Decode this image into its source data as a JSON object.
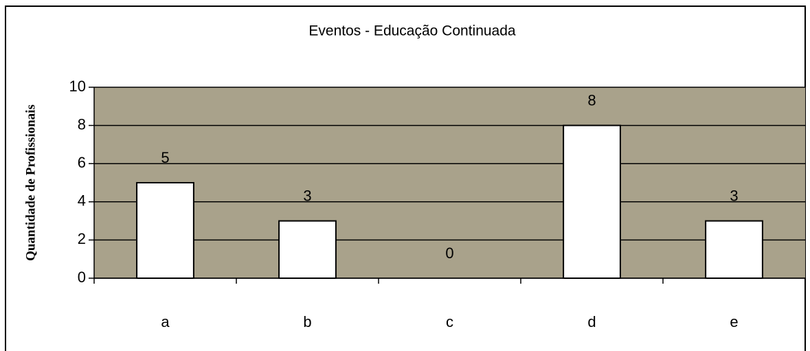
{
  "chart_data": {
    "type": "bar",
    "title": "Eventos - Educação Continuada",
    "y_label": "Quantidade de Profissionais",
    "categories": [
      "a",
      "b",
      "c",
      "d",
      "e"
    ],
    "values": [
      5,
      3,
      0,
      8,
      3
    ],
    "color": "#ffffff",
    "plot_background": "#a9a28b",
    "ylim": [
      0,
      10
    ],
    "yticks": [
      0,
      2,
      4,
      6,
      8,
      10
    ],
    "grid": true
  }
}
